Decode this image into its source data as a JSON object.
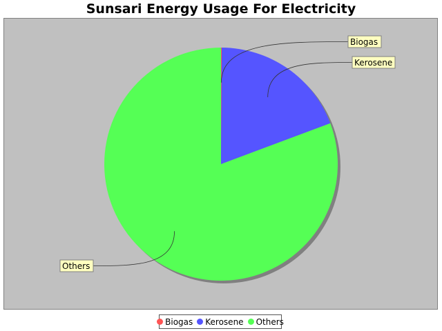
{
  "chart_data": {
    "type": "pie",
    "title": "Sunsari Energy Usage For Electricity",
    "labels": [
      "Biogas",
      "Kerosene",
      "Others"
    ],
    "values": [
      0.1,
      19.2,
      80.7
    ],
    "colors": [
      "#ff5555",
      "#5555ff",
      "#55ff55"
    ],
    "legend": "bottom",
    "background": "#c0c0c0"
  }
}
